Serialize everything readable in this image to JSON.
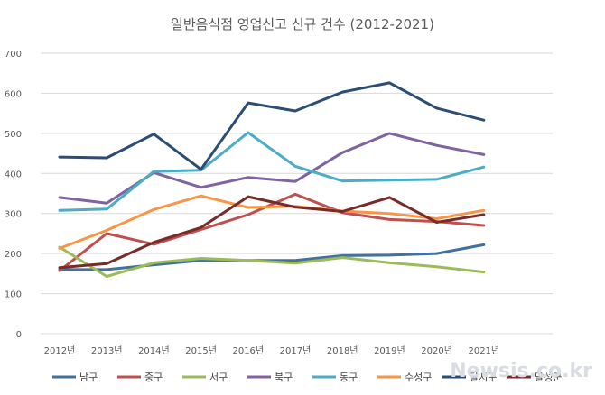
{
  "chart_data": {
    "type": "line",
    "title": "일반음식점 영업신고 신규 건수 (2012-2021)",
    "categories": [
      "2012년",
      "2013년",
      "2014년",
      "2015년",
      "2016년",
      "2017년",
      "2018년",
      "2019년",
      "2020년",
      "2021년"
    ],
    "ylim": [
      0,
      700
    ],
    "yticks": [
      0,
      100,
      200,
      300,
      400,
      500,
      600,
      700
    ],
    "grid": true,
    "legend_position": "bottom",
    "series": [
      {
        "name": "남구",
        "color": "#41719c",
        "dash": "solid",
        "values": [
          160,
          160,
          172,
          183,
          183,
          183,
          195,
          196,
          200,
          222
        ]
      },
      {
        "name": "중구",
        "color": "#c0504d",
        "dash": "solid",
        "values": [
          157,
          250,
          223,
          260,
          297,
          348,
          302,
          285,
          280,
          270
        ]
      },
      {
        "name": "서구",
        "color": "#9bbb59",
        "dash": "solid",
        "values": [
          216,
          143,
          177,
          188,
          183,
          176,
          190,
          177,
          167,
          154
        ]
      },
      {
        "name": "북구",
        "color": "#8064a2",
        "dash": "solid",
        "values": [
          340,
          326,
          402,
          365,
          390,
          380,
          452,
          500,
          470,
          447
        ]
      },
      {
        "name": "동구",
        "color": "#4bacc6",
        "dash": "solid",
        "values": [
          308,
          311,
          405,
          408,
          502,
          418,
          381,
          383,
          385,
          416
        ]
      },
      {
        "name": "수성구",
        "color": "#f79646",
        "dash": "solid",
        "values": [
          213,
          258,
          310,
          344,
          315,
          318,
          306,
          300,
          287,
          308
        ]
      },
      {
        "name": "달서구",
        "color": "#2c4d75",
        "dash": "solid",
        "values": [
          441,
          439,
          498,
          410,
          576,
          556,
          603,
          626,
          563,
          533
        ]
      },
      {
        "name": "달성군",
        "color": "#772c2a",
        "dash": "solid",
        "values": [
          165,
          175,
          228,
          265,
          342,
          316,
          305,
          340,
          278,
          297
        ]
      }
    ]
  },
  "watermark": "Newsis.co.kr"
}
